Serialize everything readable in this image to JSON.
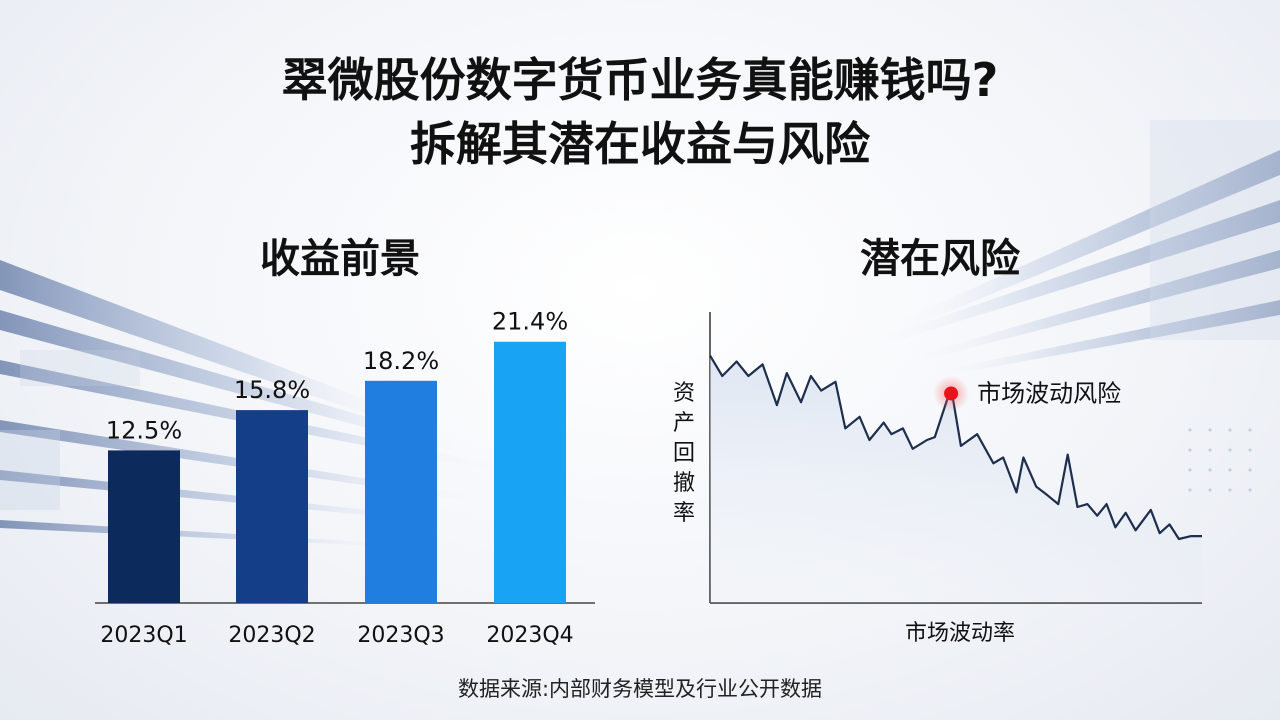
{
  "title_line1": "翠微股份数字货币业务真能赚钱吗?",
  "title_line2": "拆解其潜在收益与风险",
  "source": "数据来源:内部财务模型及行业公开数据",
  "colors": {
    "bar_q1": "#0d2a5c",
    "bar_q2": "#143f88",
    "bar_q3": "#1f7ee0",
    "bar_q4": "#18a3f5",
    "risk_line": "#1d2f4d",
    "risk_marker": "#e8141b"
  },
  "chart_data": [
    {
      "type": "bar",
      "title": "收益前景",
      "categories": [
        "2023Q1",
        "2023Q2",
        "2023Q3",
        "2023Q4"
      ],
      "values": [
        12.5,
        15.8,
        18.2,
        21.4
      ],
      "data_labels": [
        "12.5%",
        "15.8%",
        "18.2%",
        "21.4%"
      ],
      "ylim": [
        0,
        24
      ],
      "grid": false
    },
    {
      "type": "line",
      "title": "潜在风险",
      "xlabel": "市场波动率",
      "ylabel": "资产回撤率",
      "xlim": [
        0,
        100
      ],
      "ylim": [
        0,
        100
      ],
      "x": [
        0,
        2.5,
        5.4,
        7.8,
        10.7,
        13.6,
        15.6,
        18.5,
        20.5,
        22.6,
        25.5,
        27.5,
        30.4,
        32.4,
        35.3,
        36.9,
        39.2,
        41.2,
        44.1,
        45.7,
        49,
        51,
        54.3,
        57.6,
        59.6,
        62.3,
        63.7,
        66.3,
        68.6,
        70.8,
        72.7,
        74.7,
        76.7,
        78.7,
        80.6,
        82.4,
        84.5,
        86.5,
        89.6,
        91.4,
        93.4,
        95.3,
        97.8,
        100
      ],
      "y": [
        85,
        78,
        83,
        78,
        82,
        68,
        79,
        69,
        78,
        73,
        76,
        60,
        64,
        56,
        62,
        58,
        60,
        53,
        56,
        57,
        74,
        54,
        58,
        48,
        50,
        38,
        50,
        40,
        37,
        34,
        51,
        33,
        34,
        30,
        34,
        26,
        31,
        25,
        32,
        24,
        27,
        22,
        23,
        23
      ],
      "annotations": [
        {
          "text": "市场波动风险",
          "x": 49,
          "y": 72
        }
      ]
    }
  ]
}
